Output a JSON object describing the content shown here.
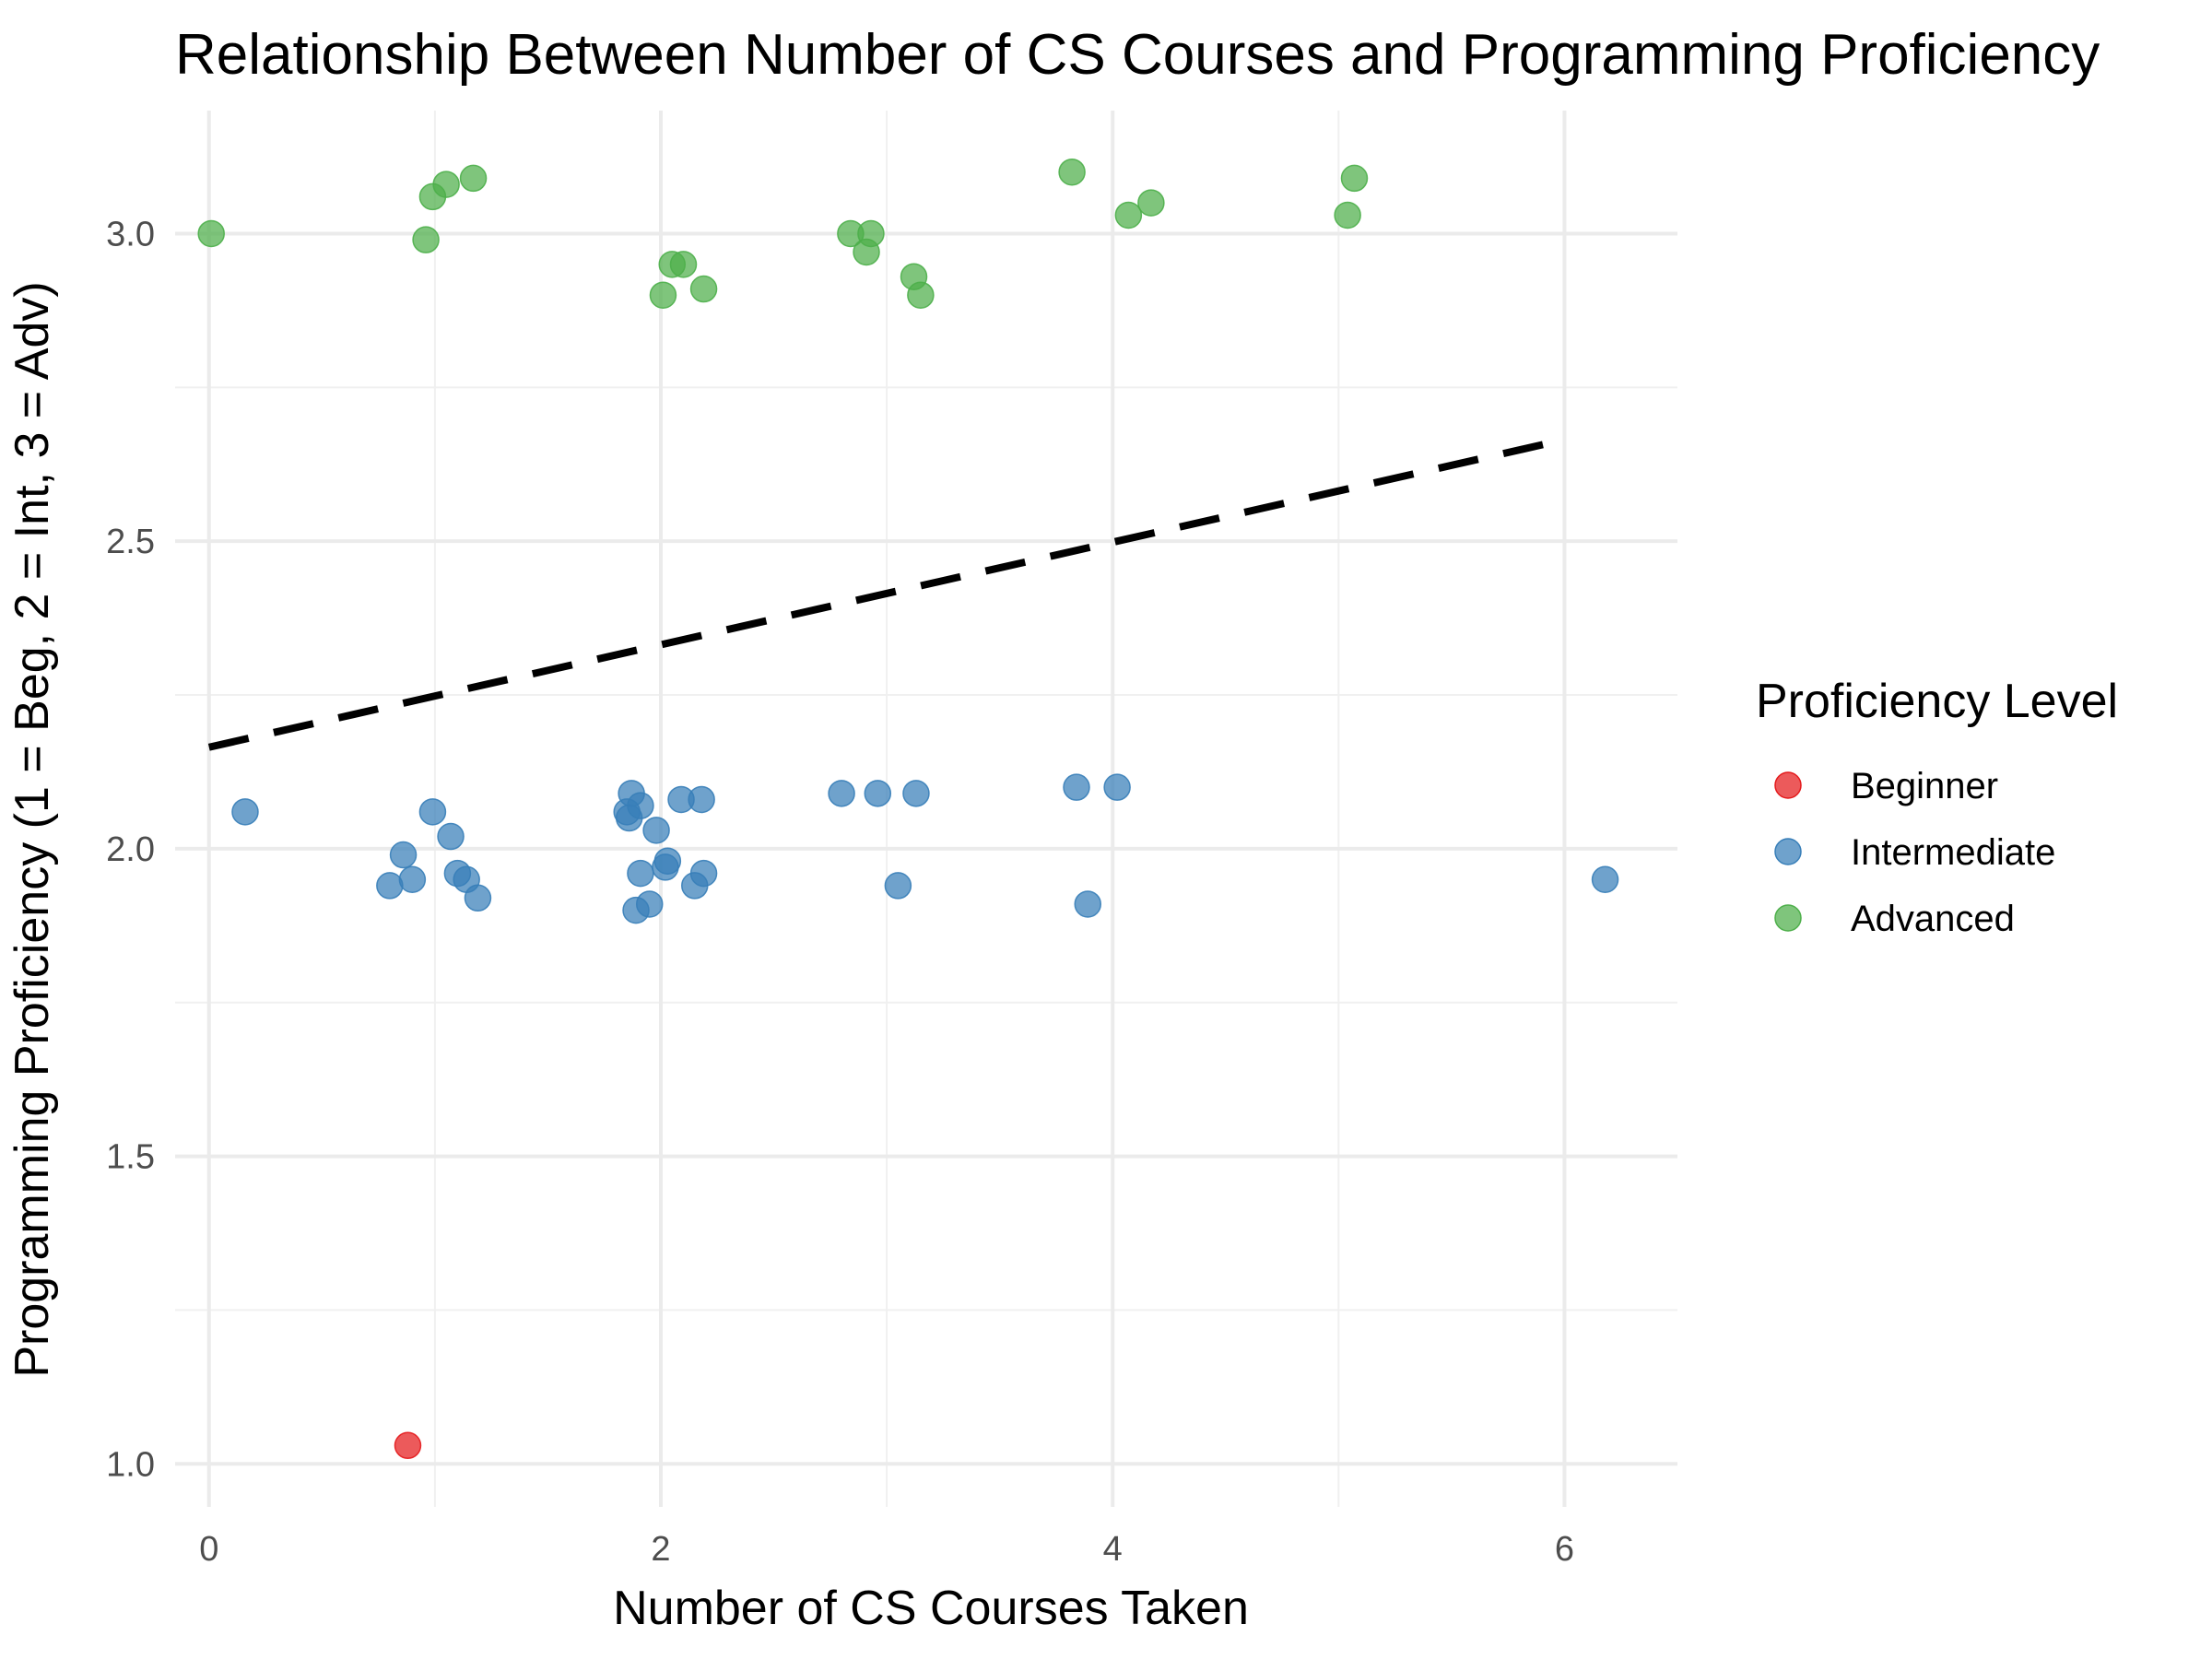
{
  "chart_data": {
    "type": "scatter",
    "title": "Relationship Between Number of CS Courses and Programming Proficiency",
    "xlabel": "Number of CS Courses Taken",
    "ylabel": "Programming Proficiency (1 = Beg, 2 = Int, 3 = Adv)",
    "xlim": [
      -0.15,
      6.5
    ],
    "ylim": [
      0.93,
      3.2
    ],
    "x_ticks": [
      0,
      2,
      4,
      6
    ],
    "y_ticks": [
      1.0,
      1.5,
      2.0,
      2.5,
      3.0
    ],
    "x_tick_labels": [
      "0",
      "2",
      "4",
      "6"
    ],
    "y_tick_labels": [
      "1.0",
      "1.5",
      "2.0",
      "2.5",
      "3.0"
    ],
    "grid": true,
    "legend_position": "right",
    "legend_title": "Proficiency Level",
    "series": [
      {
        "name": "Beginner",
        "color": "#E41A1C",
        "points": [
          [
            0.88,
            1.03
          ]
        ]
      },
      {
        "name": "Intermediate",
        "color": "#377EB8",
        "points": [
          [
            0.16,
            2.06
          ],
          [
            0.8,
            1.94
          ],
          [
            0.86,
            1.99
          ],
          [
            0.9,
            1.95
          ],
          [
            0.99,
            2.06
          ],
          [
            1.07,
            2.02
          ],
          [
            1.1,
            1.96
          ],
          [
            1.14,
            1.95
          ],
          [
            1.19,
            1.92
          ],
          [
            1.85,
            2.06
          ],
          [
            1.86,
            2.05
          ],
          [
            1.87,
            2.09
          ],
          [
            1.89,
            1.9
          ],
          [
            1.91,
            2.07
          ],
          [
            1.91,
            1.96
          ],
          [
            1.95,
            1.91
          ],
          [
            1.98,
            2.03
          ],
          [
            2.02,
            1.97
          ],
          [
            2.03,
            1.98
          ],
          [
            2.09,
            2.08
          ],
          [
            2.15,
            1.94
          ],
          [
            2.18,
            2.08
          ],
          [
            2.19,
            1.96
          ],
          [
            2.8,
            2.09
          ],
          [
            2.96,
            2.09
          ],
          [
            3.05,
            1.94
          ],
          [
            3.13,
            2.09
          ],
          [
            3.84,
            2.1
          ],
          [
            3.89,
            1.91
          ],
          [
            4.02,
            2.1
          ],
          [
            6.18,
            1.95
          ]
        ]
      },
      {
        "name": "Advanced",
        "color": "#4DAF4A",
        "points": [
          [
            0.01,
            3.0
          ],
          [
            0.96,
            2.99
          ],
          [
            0.99,
            3.06
          ],
          [
            1.05,
            3.08
          ],
          [
            1.17,
            3.09
          ],
          [
            2.01,
            2.9
          ],
          [
            2.05,
            2.95
          ],
          [
            2.1,
            2.95
          ],
          [
            2.19,
            2.91
          ],
          [
            2.84,
            3.0
          ],
          [
            2.91,
            2.97
          ],
          [
            2.93,
            3.0
          ],
          [
            3.12,
            2.93
          ],
          [
            3.15,
            2.9
          ],
          [
            3.82,
            3.1
          ],
          [
            4.07,
            3.03
          ],
          [
            4.17,
            3.05
          ],
          [
            5.04,
            3.03
          ],
          [
            5.07,
            3.09
          ]
        ]
      }
    ],
    "trend_line": {
      "style": "dashed",
      "color": "#000000",
      "points": [
        [
          0,
          2.165
        ],
        [
          6,
          2.665
        ]
      ]
    }
  }
}
